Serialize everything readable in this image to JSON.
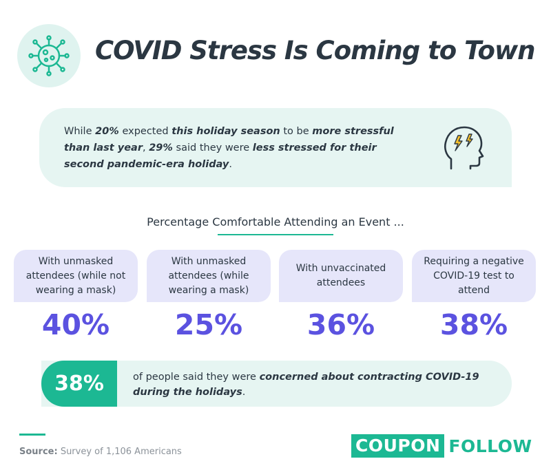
{
  "header": {
    "title": "COVID Stress Is Coming to Town",
    "icon": "virus-icon"
  },
  "intro": {
    "parts": [
      {
        "text": "While ",
        "bold": false
      },
      {
        "text": "20%",
        "bold": true
      },
      {
        "text": " expected ",
        "bold": false
      },
      {
        "text": "this holiday season",
        "bold": true
      },
      {
        "text": " to be ",
        "bold": false
      },
      {
        "text": "more stressful than last year",
        "bold": true
      },
      {
        "text": ", ",
        "bold": false
      },
      {
        "text": "29%",
        "bold": true
      },
      {
        "text": " said they were ",
        "bold": false
      },
      {
        "text": "less stressed for their second pandemic-era holiday",
        "bold": true
      },
      {
        "text": ".",
        "bold": false
      }
    ],
    "icon": "stressed-head-icon"
  },
  "section": {
    "title": "Percentage Comfortable Attending an Event ..."
  },
  "stats": [
    {
      "label": "With unmasked attendees (while not wearing a mask)",
      "value": "40%"
    },
    {
      "label": "With unmasked attendees (while wearing a mask)",
      "value": "25%"
    },
    {
      "label": "With unvaccinated attendees",
      "value": "36%"
    },
    {
      "label": "Requiring a negative COVID-19 test to attend",
      "value": "38%"
    }
  ],
  "concern": {
    "value": "38%",
    "text_plain": "of people said they were ",
    "text_bold": "concerned about contracting COVID-19 during the holidays",
    "text_end": "."
  },
  "footer": {
    "source_label": "Source:",
    "source_text": " Survey of 1,106 Americans",
    "logo_part1": "COUPON",
    "logo_part2": "FOLLOW"
  },
  "colors": {
    "accent_green": "#1cb893",
    "accent_purple": "#5b52e0",
    "card_lavender": "#e6e6fa",
    "box_mint": "#e6f5f2"
  }
}
